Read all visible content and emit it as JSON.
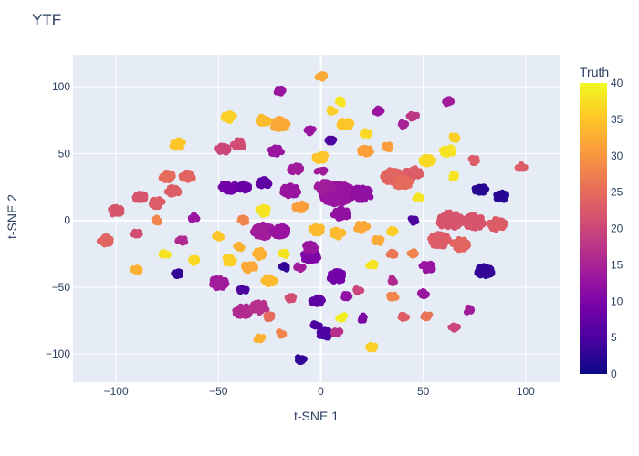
{
  "chart_data": {
    "type": "scatter",
    "title": "YTF",
    "xlabel": "t-SNE 1",
    "ylabel": "t-SNE 2",
    "xlim": [
      -121,
      117
    ],
    "ylim": [
      -121,
      124
    ],
    "xticks": [
      -100,
      -50,
      0,
      50,
      100
    ],
    "yticks": [
      -100,
      -50,
      0,
      50,
      100
    ],
    "grid": true,
    "colorbar": {
      "title": "Truth",
      "range": [
        0,
        40
      ],
      "ticks": [
        0,
        5,
        10,
        15,
        20,
        25,
        30,
        35,
        40
      ],
      "colorscale": [
        "#0d0887",
        "#46039f",
        "#7201a8",
        "#9c179e",
        "#bd3786",
        "#d8576b",
        "#ed7953",
        "#fb9f3a",
        "#fdca26",
        "#f0f921"
      ]
    },
    "clusters": [
      {
        "x": 8,
        "y": 20,
        "r": 8,
        "truth": 13
      },
      {
        "x": 20,
        "y": 20,
        "r": 5,
        "truth": 12
      },
      {
        "x": 2,
        "y": 25,
        "r": 4,
        "truth": 14
      },
      {
        "x": 10,
        "y": 5,
        "r": 4,
        "truth": 12
      },
      {
        "x": 35,
        "y": 33,
        "r": 5,
        "truth": 24
      },
      {
        "x": 45,
        "y": 35,
        "r": 4,
        "truth": 23
      },
      {
        "x": 40,
        "y": 28,
        "r": 4,
        "truth": 25
      },
      {
        "x": 63,
        "y": 0,
        "r": 6,
        "truth": 22
      },
      {
        "x": 75,
        "y": -1,
        "r": 5,
        "truth": 22
      },
      {
        "x": 58,
        "y": -15,
        "r": 5,
        "truth": 23
      },
      {
        "x": 68,
        "y": -18,
        "r": 4,
        "truth": 24
      },
      {
        "x": 86,
        "y": -3,
        "r": 4,
        "truth": 23
      },
      {
        "x": 80,
        "y": -38,
        "r": 4,
        "truth": 3
      },
      {
        "x": 78,
        "y": 23,
        "r": 3,
        "truth": 2
      },
      {
        "x": 88,
        "y": 18,
        "r": 3,
        "truth": 2
      },
      {
        "x": -28,
        "y": -8,
        "r": 5,
        "truth": 14
      },
      {
        "x": -20,
        "y": -8,
        "r": 4,
        "truth": 13
      },
      {
        "x": -22,
        "y": 52,
        "r": 3,
        "truth": 13
      },
      {
        "x": -15,
        "y": 22,
        "r": 4,
        "truth": 13
      },
      {
        "x": -12,
        "y": 38,
        "r": 3,
        "truth": 14
      },
      {
        "x": -45,
        "y": 25,
        "r": 4,
        "truth": 9
      },
      {
        "x": -38,
        "y": 25,
        "r": 3,
        "truth": 8
      },
      {
        "x": -28,
        "y": 28,
        "r": 3,
        "truth": 7
      },
      {
        "x": -5,
        "y": -27,
        "r": 4,
        "truth": 10
      },
      {
        "x": 8,
        "y": -42,
        "r": 4,
        "truth": 9
      },
      {
        "x": -38,
        "y": -68,
        "r": 4,
        "truth": 16
      },
      {
        "x": -30,
        "y": -65,
        "r": 4,
        "truth": 17
      },
      {
        "x": -48,
        "y": 53,
        "r": 3,
        "truth": 20
      },
      {
        "x": -40,
        "y": 57,
        "r": 3,
        "truth": 21
      },
      {
        "x": -88,
        "y": 17,
        "r": 3,
        "truth": 22
      },
      {
        "x": -80,
        "y": 13,
        "r": 3,
        "truth": 23
      },
      {
        "x": -100,
        "y": 7,
        "r": 3,
        "truth": 22
      },
      {
        "x": -72,
        "y": 22,
        "r": 3,
        "truth": 23
      },
      {
        "x": -65,
        "y": 33,
        "r": 3,
        "truth": 24
      },
      {
        "x": -75,
        "y": 33,
        "r": 3,
        "truth": 25
      },
      {
        "x": -105,
        "y": -15,
        "r": 3,
        "truth": 24
      },
      {
        "x": -90,
        "y": -10,
        "r": 2,
        "truth": 21
      },
      {
        "x": -80,
        "y": 0,
        "r": 2,
        "truth": 28
      },
      {
        "x": -68,
        "y": -15,
        "r": 2,
        "truth": 16
      },
      {
        "x": -62,
        "y": 2,
        "r": 2,
        "truth": 13
      },
      {
        "x": -76,
        "y": -25,
        "r": 2,
        "truth": 38
      },
      {
        "x": -70,
        "y": -40,
        "r": 2,
        "truth": 3
      },
      {
        "x": -90,
        "y": -37,
        "r": 2,
        "truth": 33
      },
      {
        "x": -62,
        "y": -30,
        "r": 2,
        "truth": 37
      },
      {
        "x": -50,
        "y": -47,
        "r": 4,
        "truth": 14
      },
      {
        "x": -45,
        "y": 77,
        "r": 3,
        "truth": 36
      },
      {
        "x": -20,
        "y": 72,
        "r": 4,
        "truth": 32
      },
      {
        "x": -28,
        "y": 75,
        "r": 3,
        "truth": 34
      },
      {
        "x": -20,
        "y": 97,
        "r": 2,
        "truth": 13
      },
      {
        "x": -70,
        "y": 57,
        "r": 3,
        "truth": 35
      },
      {
        "x": -30,
        "y": -25,
        "r": 3,
        "truth": 33
      },
      {
        "x": -25,
        "y": -45,
        "r": 3,
        "truth": 34
      },
      {
        "x": -45,
        "y": -30,
        "r": 3,
        "truth": 36
      },
      {
        "x": -35,
        "y": -35,
        "r": 3,
        "truth": 32
      },
      {
        "x": -18,
        "y": -25,
        "r": 2,
        "truth": 38
      },
      {
        "x": -28,
        "y": 7,
        "r": 3,
        "truth": 38
      },
      {
        "x": -10,
        "y": 10,
        "r": 3,
        "truth": 31
      },
      {
        "x": -38,
        "y": 0,
        "r": 2,
        "truth": 28
      },
      {
        "x": -50,
        "y": -12,
        "r": 2,
        "truth": 35
      },
      {
        "x": -40,
        "y": -20,
        "r": 2,
        "truth": 33
      },
      {
        "x": -5,
        "y": -20,
        "r": 3,
        "truth": 13
      },
      {
        "x": -10,
        "y": -35,
        "r": 2,
        "truth": 14
      },
      {
        "x": -18,
        "y": -35,
        "r": 2,
        "truth": 3
      },
      {
        "x": -25,
        "y": -72,
        "r": 2,
        "truth": 25
      },
      {
        "x": -30,
        "y": -88,
        "r": 2,
        "truth": 33
      },
      {
        "x": -20,
        "y": -85,
        "r": 2,
        "truth": 28
      },
      {
        "x": -15,
        "y": -58,
        "r": 2,
        "truth": 21
      },
      {
        "x": -38,
        "y": -52,
        "r": 2,
        "truth": 5
      },
      {
        "x": 0,
        "y": 47,
        "r": 3,
        "truth": 35
      },
      {
        "x": 0,
        "y": 108,
        "r": 2,
        "truth": 32
      },
      {
        "x": 5,
        "y": 82,
        "r": 2,
        "truth": 36
      },
      {
        "x": 10,
        "y": 89,
        "r": 2,
        "truth": 38
      },
      {
        "x": 12,
        "y": 72,
        "r": 3,
        "truth": 35
      },
      {
        "x": 22,
        "y": 65,
        "r": 2,
        "truth": 37
      },
      {
        "x": 22,
        "y": 52,
        "r": 3,
        "truth": 31
      },
      {
        "x": 33,
        "y": 55,
        "r": 2,
        "truth": 31
      },
      {
        "x": 5,
        "y": 60,
        "r": 2,
        "truth": 5
      },
      {
        "x": 0,
        "y": 37,
        "r": 2,
        "truth": 14
      },
      {
        "x": -5,
        "y": 67,
        "r": 2,
        "truth": 13
      },
      {
        "x": 40,
        "y": 72,
        "r": 2,
        "truth": 15
      },
      {
        "x": 28,
        "y": 82,
        "r": 2,
        "truth": 13
      },
      {
        "x": 45,
        "y": 78,
        "r": 2,
        "truth": 18
      },
      {
        "x": 52,
        "y": 45,
        "r": 3,
        "truth": 37
      },
      {
        "x": 62,
        "y": 52,
        "r": 3,
        "truth": 38
      },
      {
        "x": 65,
        "y": 62,
        "r": 2,
        "truth": 36
      },
      {
        "x": 62,
        "y": 89,
        "r": 2,
        "truth": 14
      },
      {
        "x": 48,
        "y": 17,
        "r": 2,
        "truth": 38
      },
      {
        "x": 65,
        "y": 33,
        "r": 2,
        "truth": 38
      },
      {
        "x": 75,
        "y": 45,
        "r": 2,
        "truth": 23
      },
      {
        "x": 98,
        "y": 40,
        "r": 2,
        "truth": 23
      },
      {
        "x": 45,
        "y": 0,
        "r": 2,
        "truth": 5
      },
      {
        "x": -2,
        "y": -7,
        "r": 3,
        "truth": 34
      },
      {
        "x": 8,
        "y": -10,
        "r": 3,
        "truth": 34
      },
      {
        "x": 20,
        "y": -5,
        "r": 3,
        "truth": 32
      },
      {
        "x": 28,
        "y": -15,
        "r": 2,
        "truth": 32
      },
      {
        "x": 35,
        "y": -8,
        "r": 2,
        "truth": 36
      },
      {
        "x": 25,
        "y": -33,
        "r": 2,
        "truth": 38
      },
      {
        "x": 35,
        "y": -25,
        "r": 2,
        "truth": 26
      },
      {
        "x": 45,
        "y": -25,
        "r": 2,
        "truth": 28
      },
      {
        "x": 52,
        "y": -35,
        "r": 3,
        "truth": 13
      },
      {
        "x": 35,
        "y": -45,
        "r": 2,
        "truth": 16
      },
      {
        "x": 50,
        "y": -55,
        "r": 2,
        "truth": 13
      },
      {
        "x": 35,
        "y": -57,
        "r": 2,
        "truth": 28
      },
      {
        "x": 40,
        "y": -72,
        "r": 2,
        "truth": 23
      },
      {
        "x": 52,
        "y": -72,
        "r": 2,
        "truth": 26
      },
      {
        "x": 72,
        "y": -67,
        "r": 2,
        "truth": 14
      },
      {
        "x": 65,
        "y": -80,
        "r": 2,
        "truth": 20
      },
      {
        "x": 25,
        "y": -95,
        "r": 2,
        "truth": 36
      },
      {
        "x": 10,
        "y": -72,
        "r": 2,
        "truth": 39
      },
      {
        "x": 20,
        "y": -73,
        "r": 2,
        "truth": 10
      },
      {
        "x": 12,
        "y": -57,
        "r": 2,
        "truth": 12
      },
      {
        "x": 18,
        "y": -52,
        "r": 2,
        "truth": 20
      },
      {
        "x": -2,
        "y": -60,
        "r": 3,
        "truth": 7
      },
      {
        "x": 2,
        "y": -85,
        "r": 3,
        "truth": 5
      },
      {
        "x": -2,
        "y": -78,
        "r": 2,
        "truth": 5
      },
      {
        "x": -10,
        "y": -104,
        "r": 2,
        "truth": 3
      },
      {
        "x": 8,
        "y": -84,
        "r": 2,
        "truth": 17
      }
    ]
  }
}
